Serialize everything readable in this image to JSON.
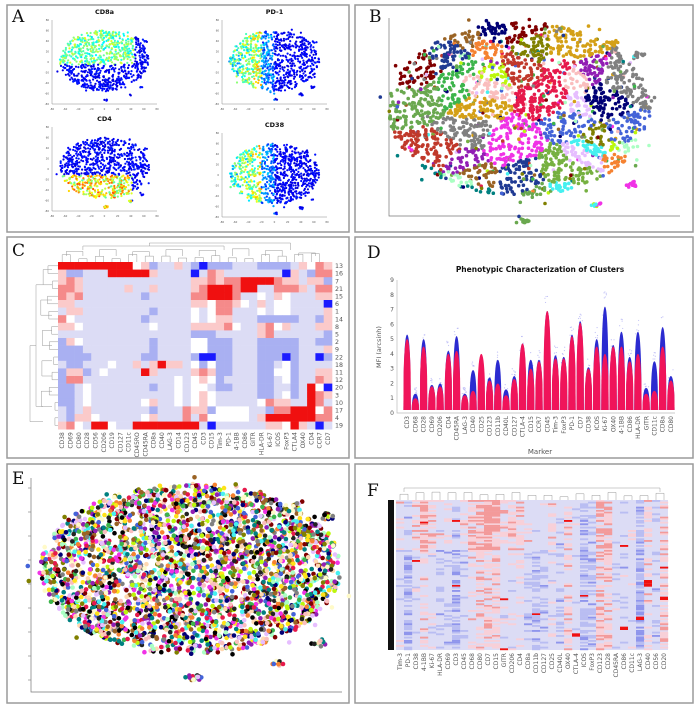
{
  "panels": {
    "A": "A",
    "B": "B",
    "C": "C",
    "D": "D",
    "E": "E",
    "F": "F"
  },
  "chart_data": [
    {
      "panel": "A",
      "type": "scatter",
      "subplots": [
        {
          "title": "CD8a",
          "high_region": "top"
        },
        {
          "title": "PD-1",
          "high_region": "left"
        },
        {
          "title": "CD4",
          "high_region": "bottom"
        },
        {
          "title": "CD38",
          "high_region": "left"
        }
      ],
      "xlim": [
        -80,
        80
      ],
      "ylim": [
        -80,
        80
      ],
      "xticks": [
        -80,
        -60,
        -40,
        -20,
        0,
        20,
        40,
        60,
        80
      ],
      "yticks": [
        -80,
        -60,
        -40,
        -20,
        0,
        20,
        40,
        60,
        80
      ],
      "colormap": "jet"
    },
    {
      "panel": "B",
      "type": "scatter",
      "colors": [
        "#e6194b",
        "#3cb44b",
        "#6aa84f",
        "#4363d8",
        "#f58231",
        "#911eb4",
        "#46f0f0",
        "#f032e6",
        "#bcf60c",
        "#fabebe",
        "#008080",
        "#e6beff",
        "#9a6324",
        "#800000",
        "#aaffc3",
        "#808000",
        "#000075",
        "#808080",
        "#1f3a93",
        "#d4a017",
        "#c0392b",
        "#76b041"
      ]
    },
    {
      "panel": "C",
      "type": "heatmap",
      "columns": [
        "CD38",
        "CD69",
        "CD80",
        "CD28",
        "CD56",
        "CD206",
        "CD19",
        "CD127",
        "CD11c",
        "CD45RO",
        "CD45RA",
        "CD8a",
        "CD40",
        "LAG-3",
        "CD14",
        "CD123",
        "CD45",
        "CD3",
        "CD15",
        "Tim-3",
        "PD-1",
        "4-1BB",
        "CD86",
        "GITR",
        "HLA-DR",
        "Ki-67",
        "ICOS",
        "FoxP3",
        "CTLA4",
        "OX40",
        "CD4",
        "CCR7",
        "CD7"
      ],
      "rows": [
        "13",
        "16",
        "7",
        "21",
        "15",
        "6",
        "1",
        "14",
        "8",
        "5",
        "2",
        "9",
        "22",
        "18",
        "11",
        "12",
        "20",
        "3",
        "10",
        "17",
        "4",
        "19"
      ],
      "value_range": [
        -3,
        3
      ],
      "colors": {
        "low": "#1a1aff",
        "mid": "#ffffff",
        "high": "#f01010"
      },
      "values": [
        [
          3,
          3,
          3,
          3,
          3,
          3,
          3,
          3,
          3,
          0,
          1,
          -2,
          -1,
          -1,
          1,
          -1,
          -2,
          -3,
          -2,
          -2,
          -2,
          -1,
          -1,
          -1,
          -2,
          -2,
          -2,
          -2,
          -1,
          1,
          0,
          2,
          1
        ],
        [
          1,
          -2,
          -2,
          -1,
          -1,
          -1,
          3,
          3,
          3,
          3,
          3,
          1,
          -1,
          -1,
          -1,
          -1,
          -3,
          -1,
          2,
          1,
          -1,
          -1,
          -1,
          -1,
          -1,
          -1,
          -1,
          -3,
          1,
          -1,
          -2,
          2,
          2
        ],
        [
          1,
          2,
          1,
          -1,
          -1,
          -1,
          -1,
          -1,
          -1,
          -1,
          -1,
          -1,
          -1,
          -1,
          -1,
          -1,
          1,
          1,
          2,
          1,
          2,
          2,
          3,
          3,
          3,
          3,
          2,
          1,
          1,
          -1,
          1,
          1,
          -2
        ],
        [
          2,
          2,
          1,
          -1,
          -1,
          -1,
          -1,
          -1,
          1,
          -1,
          -1,
          1,
          -1,
          -1,
          -1,
          -1,
          1,
          2,
          3,
          3,
          3,
          2,
          3,
          3,
          -1,
          -1,
          2,
          2,
          2,
          1,
          -1,
          2,
          2
        ],
        [
          2,
          1,
          2,
          -1,
          -1,
          -1,
          -1,
          -1,
          -1,
          -1,
          -2,
          -1,
          -1,
          -1,
          -1,
          -1,
          2,
          2,
          3,
          3,
          3,
          2,
          -1,
          -1,
          0,
          -1,
          1,
          0,
          -1,
          -1,
          -1,
          1,
          1
        ],
        [
          1,
          1,
          -1,
          -1,
          -1,
          -1,
          -1,
          -1,
          -1,
          -1,
          -1,
          -1,
          -1,
          -1,
          -1,
          -1,
          1,
          1,
          0,
          2,
          2,
          1,
          0,
          -1,
          1,
          -1,
          0,
          0,
          -1,
          -1,
          -1,
          -1,
          -3
        ],
        [
          -1,
          1,
          1,
          -1,
          -1,
          -1,
          -1,
          -1,
          -1,
          -1,
          -1,
          -2,
          -1,
          -1,
          -1,
          -1,
          0,
          -1,
          0,
          2,
          2,
          -1,
          -1,
          -1,
          0,
          -1,
          0,
          0,
          -1,
          -1,
          -1,
          -1,
          1
        ],
        [
          2,
          0,
          -1,
          -1,
          -1,
          -1,
          -1,
          -1,
          -1,
          -1,
          -2,
          -1,
          -1,
          -1,
          -1,
          -1,
          0,
          -1,
          0,
          1,
          1,
          -1,
          -1,
          -1,
          -2,
          -2,
          -2,
          -2,
          -2,
          -1,
          -1,
          -2,
          1
        ],
        [
          1,
          1,
          0,
          -1,
          -1,
          -1,
          -1,
          -1,
          -1,
          -1,
          -1,
          0,
          -1,
          -1,
          -1,
          -1,
          1,
          1,
          1,
          1,
          2,
          0,
          -1,
          -1,
          1,
          2,
          0,
          1,
          -1,
          -1,
          -1,
          1,
          1
        ],
        [
          -1,
          -1,
          -1,
          -1,
          -1,
          -1,
          -1,
          -1,
          -1,
          -1,
          -1,
          -1,
          -1,
          -1,
          -1,
          -1,
          -2,
          -2,
          -2,
          -1,
          -1,
          -1,
          -1,
          -1,
          1,
          2,
          -1,
          -1,
          -1,
          -1,
          -1,
          -1,
          -2
        ],
        [
          -2,
          1,
          0,
          -1,
          -1,
          -1,
          -1,
          -1,
          -1,
          -1,
          -1,
          -2,
          -1,
          -1,
          -1,
          -1,
          0,
          0,
          -2,
          -2,
          -2,
          -1,
          -1,
          -1,
          -2,
          -2,
          -2,
          -2,
          -2,
          -1,
          -1,
          -2,
          -2
        ],
        [
          -2,
          -2,
          -2,
          -1,
          -1,
          -1,
          -1,
          -1,
          -1,
          -1,
          -1,
          -2,
          -1,
          -1,
          -1,
          -1,
          0,
          0,
          -2,
          -2,
          -2,
          -1,
          -1,
          -1,
          -2,
          -2,
          -2,
          -2,
          -2,
          -1,
          -1,
          -1,
          1
        ],
        [
          -2,
          -2,
          -2,
          -2,
          -1,
          -1,
          -1,
          -1,
          -1,
          -1,
          -2,
          -2,
          -1,
          -1,
          -1,
          -1,
          -2,
          -3,
          -3,
          -2,
          -2,
          -1,
          -1,
          -1,
          -2,
          -2,
          -2,
          -3,
          -2,
          -1,
          -1,
          -3,
          -2
        ],
        [
          -1,
          -2,
          -2,
          -1,
          -1,
          -1,
          0,
          -1,
          -1,
          1,
          -1,
          1,
          3,
          1,
          1,
          -1,
          0,
          -2,
          0,
          -2,
          -2,
          -1,
          -1,
          -1,
          -2,
          -2,
          -1,
          0,
          -2,
          -1,
          -1,
          -1,
          -1
        ],
        [
          -2,
          1,
          1,
          -2,
          -1,
          0,
          -1,
          -1,
          -1,
          -1,
          3,
          1,
          -1,
          -1,
          -1,
          -1,
          1,
          2,
          1,
          -2,
          -2,
          -1,
          -1,
          -1,
          -2,
          -2,
          0,
          0,
          -2,
          -1,
          -1,
          1,
          1
        ],
        [
          -2,
          2,
          2,
          -1,
          -1,
          -1,
          -1,
          -1,
          -1,
          -1,
          -1,
          -1,
          -1,
          -1,
          0,
          -1,
          0,
          1,
          0,
          -2,
          -1,
          -1,
          -1,
          -1,
          -2,
          -2,
          -1,
          0,
          -2,
          -1,
          -1,
          2,
          1
        ],
        [
          -2,
          -2,
          -1,
          0,
          -1,
          -1,
          -1,
          -1,
          -1,
          -1,
          -1,
          -2,
          -1,
          -1,
          0,
          -1,
          0,
          0,
          -1,
          -2,
          -2,
          -1,
          -1,
          -1,
          -2,
          -2,
          -1,
          -1,
          -2,
          -1,
          3,
          0,
          -3
        ],
        [
          -2,
          -2,
          -1,
          0,
          -1,
          -1,
          -1,
          -1,
          -1,
          -1,
          -1,
          -1,
          -1,
          -1,
          0,
          -1,
          0,
          1,
          0,
          -1,
          -1,
          -1,
          -1,
          -1,
          -2,
          -2,
          -1,
          0,
          -2,
          -1,
          3,
          2,
          1
        ],
        [
          -2,
          -2,
          -1,
          0,
          -1,
          -1,
          -1,
          -1,
          -1,
          -1,
          0,
          1,
          -1,
          -1,
          0,
          -1,
          0,
          1,
          0,
          -1,
          -1,
          -1,
          -1,
          -1,
          0,
          2,
          1,
          1,
          -1,
          -1,
          3,
          2,
          -1
        ],
        [
          -1,
          -2,
          -1,
          1,
          -1,
          -1,
          -1,
          -1,
          -1,
          -1,
          -1,
          -2,
          -1,
          -1,
          -1,
          2,
          1,
          1,
          -2,
          0,
          0,
          0,
          0,
          -1,
          -1,
          -2,
          2,
          2,
          3,
          3,
          3,
          0,
          2
        ],
        [
          -1,
          -2,
          1,
          1,
          0,
          -1,
          -1,
          -1,
          -1,
          -1,
          0,
          1,
          -1,
          -1,
          -1,
          2,
          -1,
          2,
          0,
          0,
          0,
          0,
          0,
          -1,
          1,
          3,
          3,
          3,
          3,
          3,
          3,
          2,
          2
        ],
        [
          1,
          2,
          0,
          -1,
          3,
          3,
          0,
          -1,
          -1,
          3,
          3,
          3,
          3,
          3,
          3,
          3,
          3,
          -1,
          -3,
          -1,
          -1,
          -1,
          -1,
          -1,
          -1,
          1,
          1,
          0,
          3,
          1,
          -1,
          -3,
          -1
        ]
      ]
    },
    {
      "panel": "D",
      "type": "scatter",
      "title": "Phenotypic Characterization of Clusters",
      "xlabel": "Marker",
      "ylabel": "MFI (arcsinh)",
      "ylim": [
        0,
        9
      ],
      "yticks": [
        0,
        1,
        2,
        3,
        4,
        5,
        6,
        7,
        8,
        9
      ],
      "categories": [
        "CD3",
        "CD68",
        "CD28",
        "CD69",
        "CD206",
        "CD4",
        "CD45RA",
        "LAG-3",
        "CD40",
        "CD25",
        "CD123",
        "CD11b",
        "CD40L",
        "CD127",
        "CTLA-4",
        "CD15",
        "CCR7",
        "CD45",
        "Tim-3",
        "FoxP3",
        "PD-1",
        "CD7",
        "CD38",
        "ICOS",
        "Ki-67",
        "OX40",
        "4-1BB",
        "CD86",
        "HLA-DR",
        "GITR",
        "CD11c",
        "CD8a",
        "CD80"
      ],
      "series": [
        {
          "name": "",
          "color": "#f0145a",
          "values": [
            5.0,
            1.0,
            4.5,
            1.8,
            1.8,
            4.0,
            4.2,
            1.2,
            1.5,
            4.0,
            2.2,
            2.0,
            1.2,
            2.3,
            4.7,
            3.0,
            3.5,
            6.9,
            3.7,
            3.7,
            5.2,
            6.1,
            3.0,
            4.5,
            4.0,
            4.5,
            4.5,
            3.5,
            4.0,
            1.3,
            1.5,
            4.5,
            2.2
          ]
        },
        {
          "name": "",
          "color": "#2b2bd0",
          "values": [
            5.3,
            1.3,
            5.0,
            1.9,
            2.0,
            4.2,
            5.2,
            1.3,
            2.9,
            3.0,
            2.4,
            3.6,
            1.6,
            2.5,
            4.7,
            3.6,
            3.6,
            6.9,
            3.9,
            3.8,
            5.3,
            6.2,
            3.1,
            5.0,
            7.2,
            4.6,
            5.5,
            3.8,
            5.5,
            1.7,
            3.5,
            5.8,
            2.5
          ]
        }
      ]
    },
    {
      "panel": "E",
      "type": "scatter",
      "colors": [
        "#e6194b",
        "#3cb44b",
        "#ffe119",
        "#4363d8",
        "#f58231",
        "#911eb4",
        "#46f0f0",
        "#f032e6",
        "#bcf60c",
        "#fabebe",
        "#008080",
        "#e6beff",
        "#9a6324",
        "#fffac8",
        "#800000",
        "#aaffc3",
        "#808000",
        "#ffd8b1",
        "#000075",
        "#808080",
        "#000000",
        "#222222"
      ]
    },
    {
      "panel": "F",
      "type": "heatmap",
      "columns": [
        "Tim-3",
        "PD-1",
        "CD38",
        "4-1BB",
        "Ki-67",
        "HLA-DR",
        "CD69",
        "CD3",
        "CD45",
        "CD68",
        "CD80",
        "CD7",
        "CD15",
        "GITR",
        "CD206",
        "CD4",
        "CD8a",
        "CD11b",
        "CD127",
        "CD25",
        "CD40L",
        "OX40",
        "CTLA-4",
        "ICOS",
        "FoxP3",
        "CD123",
        "CD28",
        "CD45RA",
        "CD86",
        "CD11c",
        "LAG-3",
        "CD40",
        "CD56",
        "CD20"
      ],
      "colors": {
        "low": "#3333e0",
        "mid": "#dcdcf5",
        "high": "#f01010"
      }
    }
  ]
}
